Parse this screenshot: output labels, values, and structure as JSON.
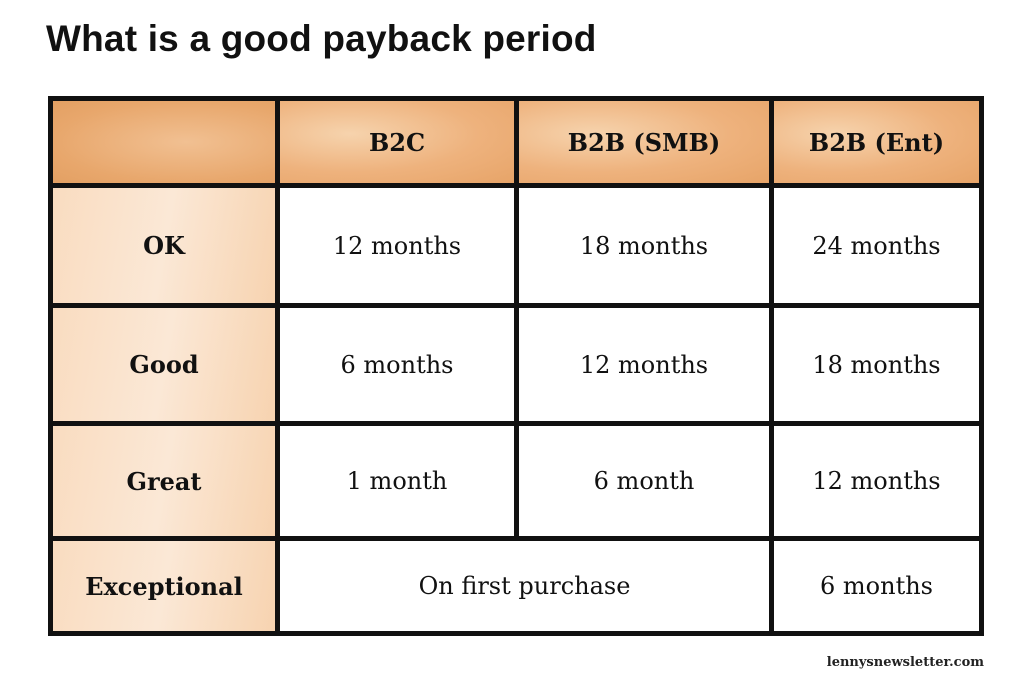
{
  "title": "What is a good payback period",
  "footer": "lennysnewsletter.com",
  "colors": {
    "header_fill": "#eeb27d",
    "row_header_fill": "#f9dcc0",
    "grid_line": "#111111"
  },
  "chart_data": {
    "type": "table",
    "title": "What is a good payback period",
    "columns": [
      "B2C",
      "B2B (SMB)",
      "B2B (Ent)"
    ],
    "rows": [
      {
        "label": "OK",
        "cells": [
          "12 months",
          "18 months",
          "24 months"
        ]
      },
      {
        "label": "Good",
        "cells": [
          "6 months",
          "12 months",
          "18 months"
        ]
      },
      {
        "label": "Great",
        "cells": [
          "1 month",
          "6 month",
          "12 months"
        ]
      },
      {
        "label": "Exceptional",
        "cells": [
          "On first purchase",
          "6 months"
        ],
        "merged": "B2C + B2B (SMB)"
      }
    ]
  }
}
